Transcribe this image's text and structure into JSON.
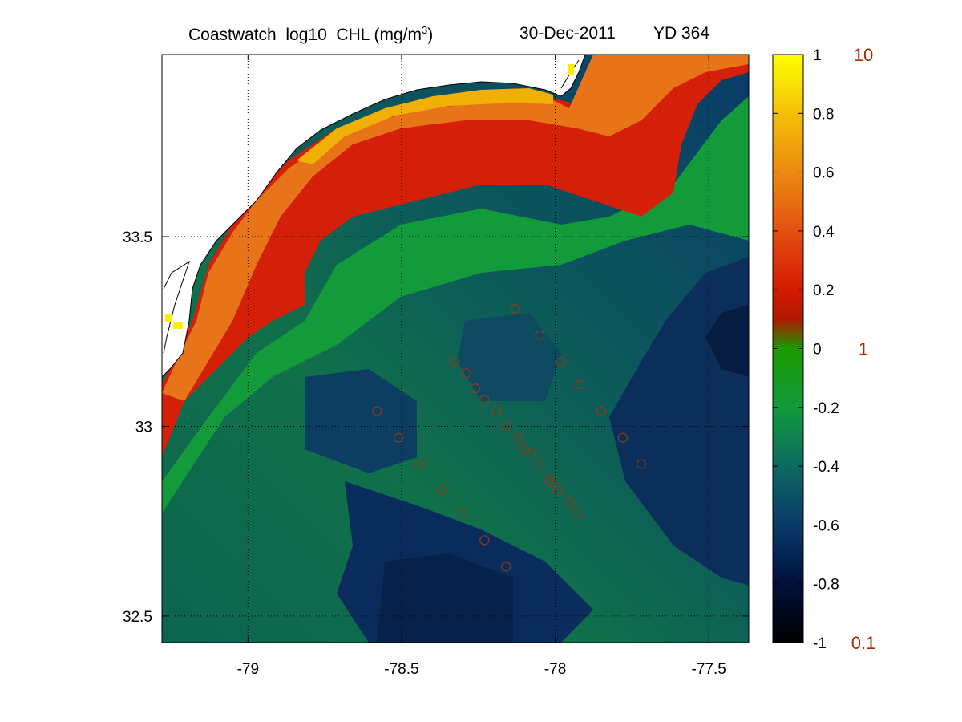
{
  "header": {
    "title_prefix": "Coastwatch  log10  CHL (mg/m",
    "title_sup": "3",
    "title_suffix": ")",
    "date": "30-Dec-2011",
    "yearday": "YD 364"
  },
  "map": {
    "lon_range": [
      -79.28,
      -77.37
    ],
    "lat_range": [
      32.43,
      33.98
    ],
    "x_ticks": [
      -79,
      -78.5,
      -78,
      -77.5
    ],
    "x_tick_labels": [
      "-79",
      "-78.5",
      "-78",
      "-77.5"
    ],
    "y_ticks": [
      32.5,
      33,
      33.5
    ],
    "y_tick_labels": [
      "32.5",
      "33",
      "33.5"
    ],
    "grid": "dotted",
    "land_color": "#ffffff",
    "coast_color": "#000000",
    "station_color": "#8b3a1a",
    "stations": [
      [
        -78.13,
        33.31
      ],
      [
        -78.05,
        33.24
      ],
      [
        -77.98,
        33.17
      ],
      [
        -78.33,
        33.17
      ],
      [
        -78.29,
        33.14
      ],
      [
        -78.26,
        33.1
      ],
      [
        -77.92,
        33.11
      ],
      [
        -78.23,
        33.07
      ],
      [
        -78.19,
        33.04
      ],
      [
        -78.58,
        33.04
      ],
      [
        -77.85,
        33.04
      ],
      [
        -78.16,
        33.0
      ],
      [
        -78.12,
        32.97
      ],
      [
        -78.51,
        32.97
      ],
      [
        -77.78,
        32.97
      ],
      [
        -78.1,
        32.94
      ],
      [
        -78.08,
        32.93
      ],
      [
        -78.44,
        32.9
      ],
      [
        -78.05,
        32.9
      ],
      [
        -77.72,
        32.9
      ],
      [
        -78.02,
        32.86
      ],
      [
        -78.01,
        32.85
      ],
      [
        -77.99,
        32.83
      ],
      [
        -78.37,
        32.83
      ],
      [
        -77.95,
        32.8
      ],
      [
        -77.93,
        32.77
      ],
      [
        -78.3,
        32.77
      ],
      [
        -78.23,
        32.7
      ],
      [
        -78.16,
        32.63
      ]
    ]
  },
  "colorbar": {
    "ticks": [
      1,
      0.8,
      0.6,
      0.4,
      0.2,
      0,
      -0.2,
      -0.4,
      -0.6,
      -0.8,
      -1
    ],
    "tick_labels": [
      "1",
      "0.8",
      "0.6",
      "0.4",
      "0.2",
      "0",
      "-0.2",
      "-0.4",
      "-0.6",
      "-0.8",
      "-1"
    ],
    "value_range": [
      -1,
      1
    ],
    "linear_labels": [
      "10",
      "1",
      "0.1"
    ],
    "linear_label_values": [
      1,
      0,
      -1
    ],
    "stops": [
      {
        "v": -1.0,
        "color": "#000000"
      },
      {
        "v": -0.8,
        "color": "#00103c"
      },
      {
        "v": -0.6,
        "color": "#0a3a6a"
      },
      {
        "v": -0.4,
        "color": "#0c6a60"
      },
      {
        "v": -0.2,
        "color": "#129a3c"
      },
      {
        "v": 0.0,
        "color": "#1a9a00"
      },
      {
        "v": 0.1,
        "color": "#b01800"
      },
      {
        "v": 0.2,
        "color": "#d41a00"
      },
      {
        "v": 0.4,
        "color": "#e45010"
      },
      {
        "v": 0.6,
        "color": "#ec8a10"
      },
      {
        "v": 0.8,
        "color": "#f4c008"
      },
      {
        "v": 1.0,
        "color": "#ffff00"
      }
    ]
  }
}
